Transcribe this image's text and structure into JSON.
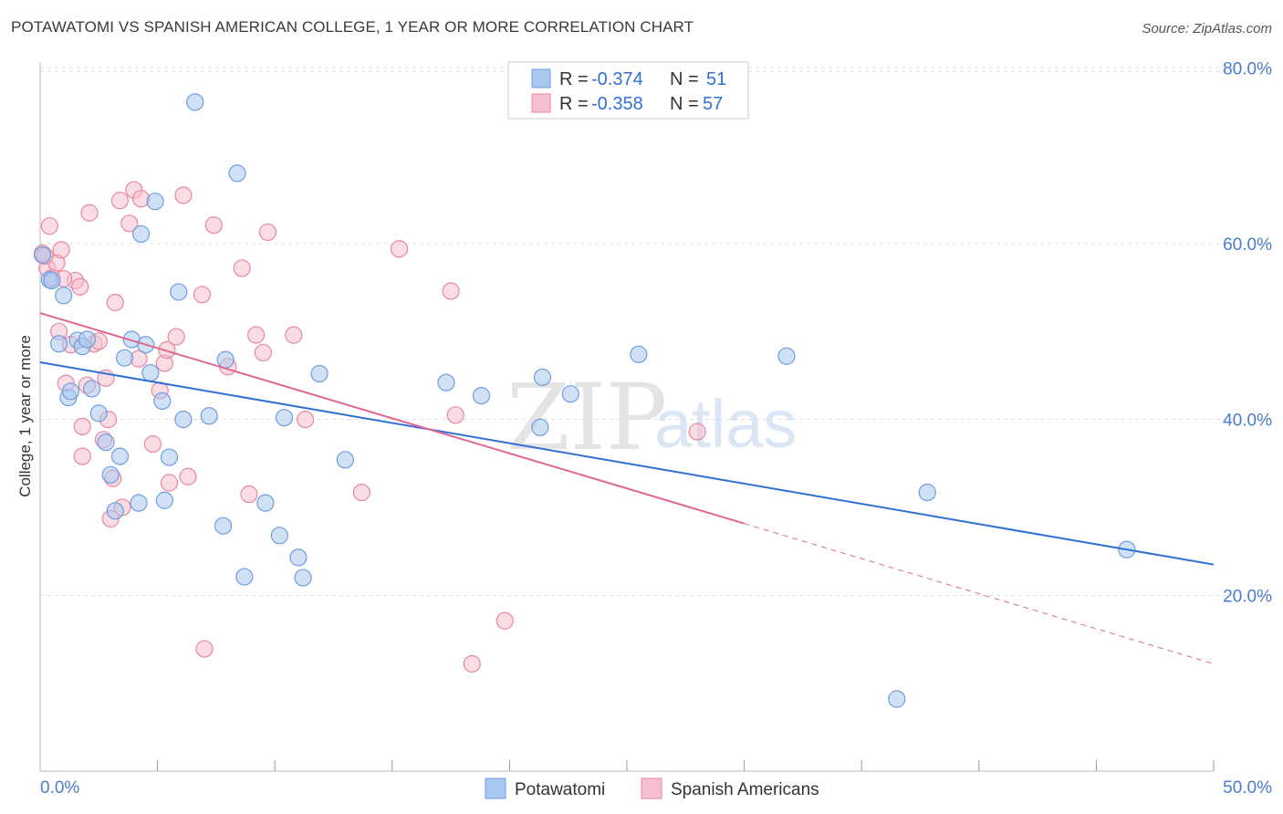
{
  "title": "POTAWATOMI VS SPANISH AMERICAN COLLEGE, 1 YEAR OR MORE CORRELATION CHART",
  "source": "Source: ZipAtlas.com",
  "watermark": {
    "zip": "ZIP",
    "atlas": "atlas"
  },
  "legend": {
    "r_label": "R = ",
    "n_label": "N = ",
    "rows": [
      {
        "r": "-0.374",
        "n": "51"
      },
      {
        "r": "-0.358",
        "n": "57"
      }
    ]
  },
  "colors": {
    "blue_fill": "#aac8ef",
    "blue_stroke": "#6f9de0",
    "blue_line": "#2f6fd6",
    "pink_fill": "#f6bfd0",
    "pink_stroke": "#e8879f",
    "pink_line": "#e06792",
    "grid": "#dddddd",
    "axis": "#bbbbbb"
  },
  "chart_data": {
    "type": "scatter",
    "title": "POTAWATOMI VS SPANISH AMERICAN COLLEGE, 1 YEAR OR MORE CORRELATION CHART",
    "xlabel": "",
    "ylabel": "College, 1 year or more",
    "xlim": [
      0,
      50
    ],
    "ylim": [
      0,
      82
    ],
    "x_tick_labels": [
      "0.0%",
      "50.0%"
    ],
    "y_ticks": [
      20,
      40,
      60,
      80
    ],
    "y_tick_labels": [
      "20.0%",
      "40.0%",
      "60.0%",
      "80.0%"
    ],
    "grid": true,
    "series": [
      {
        "name": "Potawatomi",
        "r": -0.374,
        "n": 51,
        "trend": {
          "x0": 0,
          "y0": 46.5,
          "x1": 50,
          "y1": 23.5,
          "dashed_after": null
        },
        "points": [
          [
            0.1,
            58.7
          ],
          [
            0.4,
            55.9
          ],
          [
            0.8,
            48.6
          ],
          [
            1.0,
            54.1
          ],
          [
            1.2,
            42.5
          ],
          [
            1.3,
            43.2
          ],
          [
            1.6,
            49.0
          ],
          [
            1.8,
            48.3
          ],
          [
            2.0,
            49.1
          ],
          [
            2.2,
            43.5
          ],
          [
            2.5,
            40.7
          ],
          [
            2.8,
            37.4
          ],
          [
            3.0,
            33.7
          ],
          [
            3.2,
            29.6
          ],
          [
            3.4,
            35.8
          ],
          [
            3.6,
            47.0
          ],
          [
            3.9,
            49.1
          ],
          [
            4.2,
            30.5
          ],
          [
            4.3,
            61.1
          ],
          [
            4.5,
            48.5
          ],
          [
            4.7,
            45.3
          ],
          [
            4.9,
            64.8
          ],
          [
            5.2,
            42.1
          ],
          [
            5.3,
            30.8
          ],
          [
            5.5,
            35.7
          ],
          [
            5.9,
            54.5
          ],
          [
            6.1,
            40.0
          ],
          [
            6.6,
            76.1
          ],
          [
            7.2,
            40.4
          ],
          [
            7.8,
            27.9
          ],
          [
            7.9,
            46.8
          ],
          [
            8.4,
            68.0
          ],
          [
            8.7,
            22.1
          ],
          [
            9.6,
            30.5
          ],
          [
            10.2,
            26.8
          ],
          [
            10.4,
            40.2
          ],
          [
            11.0,
            24.3
          ],
          [
            11.2,
            22.0
          ],
          [
            11.9,
            45.2
          ],
          [
            13.0,
            35.4
          ],
          [
            17.3,
            44.2
          ],
          [
            18.8,
            42.7
          ],
          [
            21.3,
            39.1
          ],
          [
            21.4,
            44.8
          ],
          [
            22.6,
            42.9
          ],
          [
            25.5,
            47.4
          ],
          [
            31.8,
            47.2
          ],
          [
            36.5,
            8.2
          ],
          [
            37.8,
            31.7
          ],
          [
            46.3,
            25.2
          ],
          [
            0.5,
            55.8
          ]
        ]
      },
      {
        "name": "Spanish Americans",
        "r": -0.358,
        "n": 57,
        "trend": {
          "x0": 0,
          "y0": 52.1,
          "x1": 50,
          "y1": 12.2,
          "dashed_after": 30.0
        },
        "points": [
          [
            0.1,
            58.9
          ],
          [
            0.3,
            57.2
          ],
          [
            0.4,
            62.0
          ],
          [
            0.5,
            56.1
          ],
          [
            0.7,
            57.8
          ],
          [
            0.9,
            59.3
          ],
          [
            0.8,
            50.0
          ],
          [
            1.1,
            44.1
          ],
          [
            1.3,
            48.5
          ],
          [
            1.5,
            55.8
          ],
          [
            1.7,
            55.1
          ],
          [
            1.8,
            39.2
          ],
          [
            1.8,
            35.8
          ],
          [
            2.0,
            43.9
          ],
          [
            2.1,
            63.5
          ],
          [
            2.3,
            48.6
          ],
          [
            2.5,
            48.9
          ],
          [
            2.7,
            37.7
          ],
          [
            2.8,
            44.7
          ],
          [
            2.9,
            40.0
          ],
          [
            3.0,
            28.7
          ],
          [
            3.1,
            33.3
          ],
          [
            3.2,
            53.3
          ],
          [
            3.4,
            64.9
          ],
          [
            3.5,
            30.0
          ],
          [
            3.8,
            62.3
          ],
          [
            4.0,
            66.1
          ],
          [
            4.2,
            46.9
          ],
          [
            4.3,
            65.1
          ],
          [
            4.8,
            37.2
          ],
          [
            5.1,
            43.3
          ],
          [
            5.3,
            46.4
          ],
          [
            5.4,
            47.9
          ],
          [
            5.5,
            32.8
          ],
          [
            5.8,
            49.4
          ],
          [
            6.1,
            65.5
          ],
          [
            6.3,
            33.5
          ],
          [
            6.9,
            54.2
          ],
          [
            7.0,
            13.9
          ],
          [
            7.4,
            62.1
          ],
          [
            8.0,
            46.0
          ],
          [
            8.6,
            57.2
          ],
          [
            8.9,
            31.5
          ],
          [
            9.2,
            49.6
          ],
          [
            9.5,
            47.6
          ],
          [
            9.7,
            61.3
          ],
          [
            10.8,
            49.6
          ],
          [
            11.3,
            40.0
          ],
          [
            13.7,
            31.7
          ],
          [
            15.3,
            59.4
          ],
          [
            17.5,
            54.6
          ],
          [
            17.7,
            40.5
          ],
          [
            18.4,
            12.2
          ],
          [
            19.8,
            17.1
          ],
          [
            28.0,
            38.6
          ],
          [
            0.2,
            58.6
          ],
          [
            1.0,
            56.0
          ]
        ]
      }
    ]
  },
  "bottom_legend": [
    "Potawatomi",
    "Spanish Americans"
  ]
}
